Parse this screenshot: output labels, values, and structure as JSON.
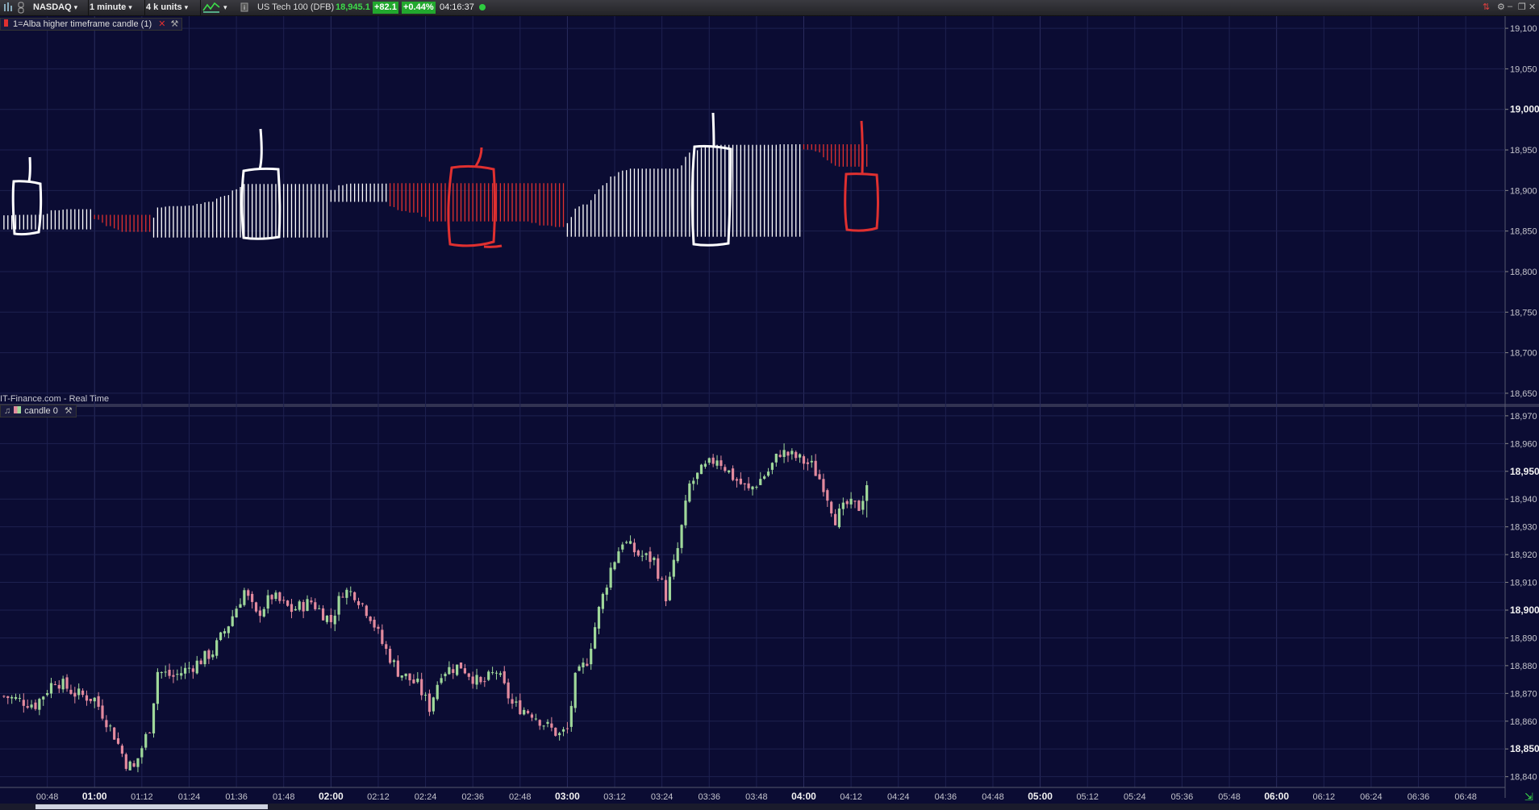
{
  "toolbar": {
    "exchange": "NASDAQ",
    "timeframe": "1 minute",
    "units": "4 k units",
    "instrument": "US Tech 100 (DFB)",
    "price": "18,945.1",
    "change": "+82.1",
    "change_pct": "+0.44%",
    "time": "04:16:37",
    "colors": {
      "up": "#2ecc40",
      "price": "#3ddc4a",
      "bg": "#2a2a2f"
    }
  },
  "upper_pane": {
    "indicator_label": "1=Alba higher timeframe candle (1)",
    "source_label": "IT-Finance.com - Real Time",
    "y_axis": {
      "ticks": [
        "19,100",
        "19,050",
        "19,000",
        "18,950",
        "18,900",
        "18,850",
        "18,800",
        "18,750",
        "18,700",
        "18,650"
      ],
      "bold": [
        "19,000"
      ]
    },
    "colors": {
      "bull": "#ffffff",
      "bear": "#e03030",
      "annotation_white": "#ffffff",
      "annotation_red": "#e03030"
    }
  },
  "lower_pane": {
    "indicator_label": "candle 0",
    "y_axis": {
      "ticks": [
        "18,970",
        "18,960",
        "18,950",
        "18,940",
        "18,930",
        "18,920",
        "18,910",
        "18,900",
        "18,890",
        "18,880",
        "18,870",
        "18,860",
        "18,850",
        "18,840"
      ],
      "bold": [
        "18,950",
        "18,900",
        "18,850"
      ]
    },
    "colors": {
      "bull": "#9fd89a",
      "bear": "#e38a9e"
    }
  },
  "x_axis": {
    "ticks": [
      "00:48",
      "01:00",
      "01:12",
      "01:24",
      "01:36",
      "01:48",
      "02:00",
      "02:12",
      "02:24",
      "02:36",
      "02:48",
      "03:00",
      "03:12",
      "03:24",
      "03:36",
      "03:48",
      "04:00",
      "04:12",
      "04:24",
      "04:36",
      "04:48",
      "05:00",
      "05:12",
      "05:24",
      "05:36",
      "05:48",
      "06:00",
      "06:12",
      "06:24",
      "06:36",
      "06:48"
    ],
    "bold": [
      "01:00",
      "02:00",
      "03:00",
      "04:00",
      "05:00",
      "06:00"
    ]
  },
  "chart_data": {
    "type": "candlestick",
    "title": "US Tech 100 (DFB)",
    "timeframe": "1 minute",
    "x_range": [
      "00:36",
      "06:58"
    ],
    "last_candle_time": "04:16",
    "y_range_lower": [
      18837,
      18972
    ],
    "y_range_upper": [
      18638,
      19113
    ],
    "grid": true,
    "anchors": [
      {
        "t": "00:37",
        "p": 18869
      },
      {
        "t": "00:45",
        "p": 18866
      },
      {
        "t": "00:50",
        "p": 18875
      },
      {
        "t": "00:55",
        "p": 18870
      },
      {
        "t": "01:00",
        "p": 18868
      },
      {
        "t": "01:05",
        "p": 18855
      },
      {
        "t": "01:08",
        "p": 18845
      },
      {
        "t": "01:10",
        "p": 18843
      },
      {
        "t": "01:14",
        "p": 18858
      },
      {
        "t": "01:16",
        "p": 18878
      },
      {
        "t": "01:20",
        "p": 18876
      },
      {
        "t": "01:25",
        "p": 18880
      },
      {
        "t": "01:30",
        "p": 18885
      },
      {
        "t": "01:34",
        "p": 18895
      },
      {
        "t": "01:38",
        "p": 18907
      },
      {
        "t": "01:41",
        "p": 18898
      },
      {
        "t": "01:45",
        "p": 18905
      },
      {
        "t": "01:50",
        "p": 18900
      },
      {
        "t": "01:55",
        "p": 18903
      },
      {
        "t": "02:00",
        "p": 18896
      },
      {
        "t": "02:03",
        "p": 18907
      },
      {
        "t": "02:06",
        "p": 18906
      },
      {
        "t": "02:10",
        "p": 18898
      },
      {
        "t": "02:13",
        "p": 18888
      },
      {
        "t": "02:17",
        "p": 18878
      },
      {
        "t": "02:22",
        "p": 18873
      },
      {
        "t": "02:25",
        "p": 18865
      },
      {
        "t": "02:28",
        "p": 18878
      },
      {
        "t": "02:33",
        "p": 18880
      },
      {
        "t": "02:38",
        "p": 18873
      },
      {
        "t": "02:42",
        "p": 18878
      },
      {
        "t": "02:46",
        "p": 18866
      },
      {
        "t": "02:51",
        "p": 18863
      },
      {
        "t": "02:55",
        "p": 18858
      },
      {
        "t": "02:58",
        "p": 18855
      },
      {
        "t": "03:00",
        "p": 18857
      },
      {
        "t": "03:02",
        "p": 18875
      },
      {
        "t": "03:05",
        "p": 18882
      },
      {
        "t": "03:08",
        "p": 18900
      },
      {
        "t": "03:11",
        "p": 18915
      },
      {
        "t": "03:14",
        "p": 18925
      },
      {
        "t": "03:18",
        "p": 18920
      },
      {
        "t": "03:22",
        "p": 18918
      },
      {
        "t": "03:25",
        "p": 18905
      },
      {
        "t": "03:28",
        "p": 18922
      },
      {
        "t": "03:31",
        "p": 18945
      },
      {
        "t": "03:34",
        "p": 18950
      },
      {
        "t": "03:38",
        "p": 18955
      },
      {
        "t": "03:42",
        "p": 18948
      },
      {
        "t": "03:46",
        "p": 18943
      },
      {
        "t": "03:51",
        "p": 18950
      },
      {
        "t": "03:54",
        "p": 18957
      },
      {
        "t": "03:58",
        "p": 18955
      },
      {
        "t": "04:02",
        "p": 18952
      },
      {
        "t": "04:05",
        "p": 18945
      },
      {
        "t": "04:08",
        "p": 18933
      },
      {
        "t": "04:11",
        "p": 18938
      },
      {
        "t": "04:14",
        "p": 18937
      },
      {
        "t": "04:16",
        "p": 18945
      }
    ],
    "htf_blocks": [
      {
        "start": "00:36",
        "end": "00:59",
        "dir": "bull",
        "low": 18852,
        "high": 18883
      },
      {
        "start": "01:00",
        "end": "01:14",
        "dir": "bear",
        "low": 18849,
        "high": 18870
      },
      {
        "start": "01:15",
        "end": "01:59",
        "dir": "bull",
        "low": 18842,
        "high": 18908
      },
      {
        "start": "02:00",
        "end": "02:14",
        "dir": "bull",
        "low": 18886,
        "high": 18909
      },
      {
        "start": "02:15",
        "end": "02:59",
        "dir": "bear",
        "low": 18855,
        "high": 18909
      },
      {
        "start": "03:00",
        "end": "03:59",
        "dir": "bull",
        "low": 18843,
        "high": 18957
      },
      {
        "start": "04:00",
        "end": "04:16",
        "dir": "bear",
        "low": 18925,
        "high": 18957
      }
    ]
  }
}
